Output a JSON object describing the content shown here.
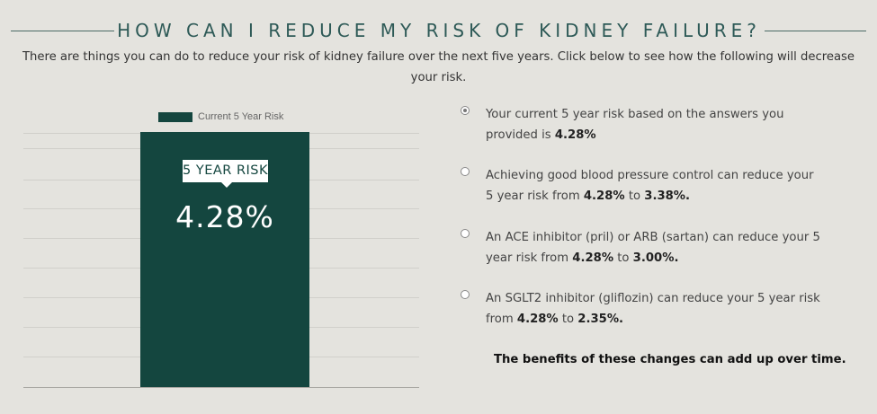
{
  "header": {
    "title": "HOW CAN I REDUCE MY RISK OF KIDNEY FAILURE?",
    "intro": "There are things you can do to reduce your risk of kidney failure over the next five years. Click below to see how the following will decrease your risk."
  },
  "chart_data": {
    "type": "bar",
    "categories": [
      "Current 5 Year Risk"
    ],
    "series": [
      {
        "name": "Current 5 Year Risk",
        "values": [
          4.28
        ]
      }
    ],
    "legend": "top",
    "grid": true,
    "annotation": {
      "label": "5 YEAR RISK",
      "value_text": "4.28%"
    },
    "colors": {
      "bar": "#14463f"
    }
  },
  "options": [
    {
      "selected": true,
      "text_before": "Your current 5 year risk based on the answers you provided is ",
      "current": "4.28%",
      "middle": "",
      "reduced": "",
      "suffix": ""
    },
    {
      "selected": false,
      "text_before": "Achieving good blood pressure control can reduce your 5 year risk from ",
      "current": "4.28%",
      "middle": " to ",
      "reduced": "3.38%",
      "suffix": "."
    },
    {
      "selected": false,
      "text_before": "An ACE inhibitor (pril) or ARB (sartan) can reduce your 5 year risk from ",
      "current": "4.28%",
      "middle": " to ",
      "reduced": "3.00%",
      "suffix": "."
    },
    {
      "selected": false,
      "text_before": "An SGLT2 inhibitor (gliflozin) can reduce your 5 year risk from ",
      "current": "4.28%",
      "middle": " to ",
      "reduced": "2.35%",
      "suffix": "."
    }
  ],
  "footer_note": "The benefits of these changes can add up over time.",
  "colors": {
    "background": "#e4e3de",
    "accent": "#2e5a57",
    "bar": "#14463f"
  }
}
